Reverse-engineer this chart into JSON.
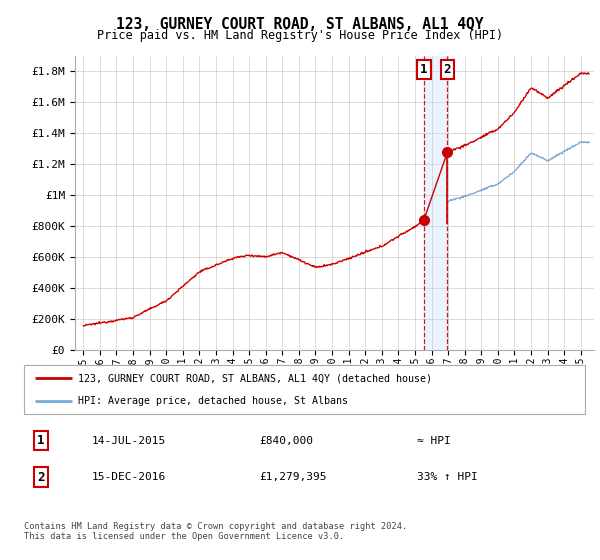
{
  "title": "123, GURNEY COURT ROAD, ST ALBANS, AL1 4QY",
  "subtitle": "Price paid vs. HM Land Registry's House Price Index (HPI)",
  "legend_line1": "123, GURNEY COURT ROAD, ST ALBANS, AL1 4QY (detached house)",
  "legend_line2": "HPI: Average price, detached house, St Albans",
  "transaction1_date": "14-JUL-2015",
  "transaction1_price": "£840,000",
  "transaction1_rel": "≈ HPI",
  "transaction2_date": "15-DEC-2016",
  "transaction2_price": "£1,279,395",
  "transaction2_rel": "33% ↑ HPI",
  "footer": "Contains HM Land Registry data © Crown copyright and database right 2024.\nThis data is licensed under the Open Government Licence v3.0.",
  "ylim": [
    0,
    1900000
  ],
  "yticks": [
    0,
    200000,
    400000,
    600000,
    800000,
    1000000,
    1200000,
    1400000,
    1600000,
    1800000
  ],
  "ytick_labels": [
    "£0",
    "£200K",
    "£400K",
    "£600K",
    "£800K",
    "£1M",
    "£1.2M",
    "£1.4M",
    "£1.6M",
    "£1.8M"
  ],
  "hpi_color": "#7aabdc",
  "price_color": "#cc0000",
  "vline1_color": "#cc0000",
  "vline2_color": "#cc0000",
  "shade_color": "#ddeeff",
  "marker1_x": 2015.54,
  "marker1_y": 840000,
  "marker2_x": 2016.96,
  "marker2_y": 1279395,
  "t1": 2015.54,
  "t2": 2016.96,
  "p1": 840000,
  "p2": 1279395,
  "bg_color": "#ffffff",
  "grid_color": "#cccccc",
  "xlim_left": 1994.5,
  "xlim_right": 2025.8
}
